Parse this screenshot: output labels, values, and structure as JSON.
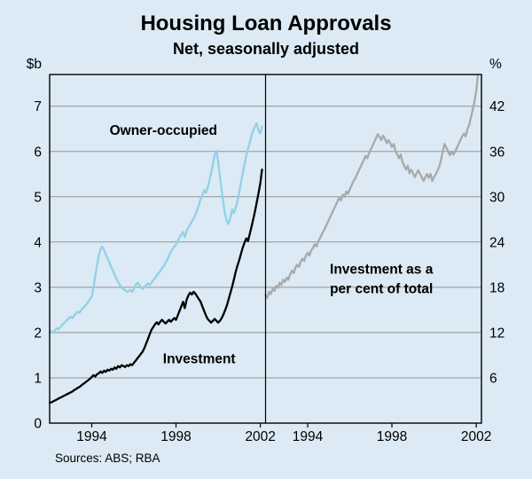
{
  "title": "Housing Loan Approvals",
  "subtitle": "Net, seasonally adjusted",
  "sources": "Sources: ABS; RBA",
  "colors": {
    "background": "#dbeaf4",
    "grid": "#949494",
    "frame": "#000000",
    "owner_occupied": "#92d1e7",
    "investment": "#000000",
    "share": "#a9a9a9"
  },
  "chart_data": [
    {
      "type": "line",
      "panel": "left",
      "unit_label": "$b",
      "tick_side": "left",
      "x_range": [
        1992.0,
        2002.25
      ],
      "y_range": [
        0,
        7.7
      ],
      "y_ticks": [
        0,
        1,
        2,
        3,
        4,
        5,
        6,
        7
      ],
      "x_ticks": [
        1994,
        1998,
        2002
      ],
      "x_start": 1992.0,
      "x_step_years": 0.0833333,
      "series": [
        {
          "name": "Owner-occupied",
          "color": "#92d1e7",
          "values": [
            2.0,
            2.03,
            1.99,
            2.05,
            2.1,
            2.07,
            2.12,
            2.16,
            2.2,
            2.24,
            2.28,
            2.32,
            2.35,
            2.32,
            2.38,
            2.42,
            2.46,
            2.44,
            2.5,
            2.55,
            2.58,
            2.63,
            2.68,
            2.74,
            2.8,
            3.0,
            3.25,
            3.5,
            3.7,
            3.85,
            3.9,
            3.82,
            3.72,
            3.64,
            3.55,
            3.45,
            3.38,
            3.28,
            3.2,
            3.12,
            3.05,
            3.0,
            2.96,
            2.94,
            2.9,
            2.92,
            2.94,
            2.9,
            2.96,
            3.05,
            3.1,
            3.06,
            3.0,
            2.96,
            3.0,
            3.05,
            3.09,
            3.05,
            3.1,
            3.15,
            3.2,
            3.26,
            3.3,
            3.36,
            3.42,
            3.46,
            3.54,
            3.6,
            3.7,
            3.78,
            3.84,
            3.9,
            3.95,
            4.02,
            4.1,
            4.16,
            4.22,
            4.1,
            4.24,
            4.32,
            4.38,
            4.46,
            4.52,
            4.6,
            4.7,
            4.82,
            4.95,
            5.05,
            5.15,
            5.08,
            5.2,
            5.35,
            5.52,
            5.72,
            5.92,
            6.02,
            5.78,
            5.45,
            5.15,
            4.85,
            4.6,
            4.45,
            4.4,
            4.56,
            4.72,
            4.64,
            4.76,
            4.9,
            5.1,
            5.32,
            5.52,
            5.72,
            5.9,
            6.06,
            6.2,
            6.36,
            6.46,
            6.56,
            6.62,
            6.45,
            6.4,
            6.55
          ]
        },
        {
          "name": "Investment",
          "color": "#000000",
          "values": [
            0.45,
            0.46,
            0.48,
            0.5,
            0.52,
            0.54,
            0.56,
            0.58,
            0.6,
            0.62,
            0.64,
            0.66,
            0.68,
            0.7,
            0.73,
            0.75,
            0.78,
            0.8,
            0.83,
            0.86,
            0.89,
            0.92,
            0.95,
            0.98,
            1.02,
            1.06,
            1.03,
            1.08,
            1.1,
            1.14,
            1.11,
            1.16,
            1.13,
            1.18,
            1.16,
            1.2,
            1.18,
            1.23,
            1.2,
            1.26,
            1.23,
            1.28,
            1.26,
            1.24,
            1.28,
            1.26,
            1.3,
            1.28,
            1.33,
            1.38,
            1.43,
            1.48,
            1.53,
            1.58,
            1.66,
            1.76,
            1.86,
            1.96,
            2.06,
            2.12,
            2.18,
            2.23,
            2.18,
            2.24,
            2.28,
            2.24,
            2.2,
            2.24,
            2.28,
            2.24,
            2.28,
            2.32,
            2.28,
            2.38,
            2.48,
            2.58,
            2.68,
            2.54,
            2.72,
            2.82,
            2.88,
            2.84,
            2.9,
            2.86,
            2.8,
            2.74,
            2.68,
            2.58,
            2.48,
            2.38,
            2.3,
            2.26,
            2.22,
            2.26,
            2.3,
            2.26,
            2.22,
            2.26,
            2.32,
            2.4,
            2.5,
            2.6,
            2.74,
            2.88,
            3.02,
            3.18,
            3.34,
            3.48,
            3.6,
            3.74,
            3.88,
            3.98,
            4.08,
            4.02,
            4.18,
            4.34,
            4.5,
            4.68,
            4.88,
            5.08,
            5.3,
            5.6
          ]
        }
      ],
      "annotations": [
        {
          "text": "Owner-occupied",
          "x": 1997.4,
          "y": 6.37
        },
        {
          "text": "Investment",
          "x": 1999.1,
          "y": 1.32
        }
      ]
    },
    {
      "type": "line",
      "panel": "right",
      "unit_label": "%",
      "tick_side": "right",
      "x_range": [
        1992.0,
        2002.25
      ],
      "y_range": [
        0,
        46.2
      ],
      "y_ticks": [
        6,
        12,
        18,
        24,
        30,
        36,
        42
      ],
      "x_ticks": [
        1994,
        1998,
        2002
      ],
      "x_start": 1992.0,
      "x_step_years": 0.0833333,
      "series": [
        {
          "name": "Investment as a per cent of total",
          "color": "#a9a9a9",
          "values": [
            17.0,
            16.6,
            17.4,
            17.1,
            17.8,
            17.5,
            18.2,
            17.9,
            18.6,
            18.3,
            19.0,
            18.7,
            19.3,
            19.0,
            19.7,
            20.2,
            19.9,
            20.6,
            21.0,
            20.7,
            21.4,
            21.8,
            21.5,
            22.2,
            22.6,
            22.2,
            22.9,
            23.2,
            23.7,
            23.4,
            24.1,
            24.5,
            25.0,
            25.4,
            25.9,
            26.4,
            26.9,
            27.4,
            27.9,
            28.4,
            28.9,
            29.4,
            29.9,
            29.5,
            30.3,
            30.0,
            30.7,
            30.4,
            31.0,
            31.5,
            32.0,
            32.4,
            32.9,
            33.4,
            33.9,
            34.4,
            34.9,
            35.4,
            35.1,
            35.8,
            36.3,
            36.8,
            37.3,
            37.8,
            38.3,
            37.9,
            37.5,
            38.1,
            37.7,
            37.1,
            37.5,
            37.1,
            36.6,
            37.0,
            36.1,
            35.6,
            35.1,
            35.6,
            34.6,
            34.1,
            33.6,
            34.1,
            33.1,
            33.6,
            33.1,
            32.6,
            33.1,
            33.5,
            33.0,
            32.6,
            32.1,
            32.6,
            33.0,
            32.5,
            33.0,
            32.1,
            32.6,
            33.0,
            33.5,
            34.0,
            35.0,
            36.0,
            37.0,
            36.5,
            36.0,
            35.5,
            36.0,
            35.6,
            36.0,
            36.5,
            37.0,
            37.5,
            38.0,
            38.4,
            38.0,
            39.0,
            39.5,
            40.5,
            41.5,
            42.6,
            44.0,
            46.0
          ]
        }
      ],
      "annotations": [
        {
          "text": "Investment as a",
          "x": 1997.5,
          "y": 19.8
        },
        {
          "text": "per cent of total",
          "x": 1997.5,
          "y": 17.2
        }
      ]
    }
  ]
}
